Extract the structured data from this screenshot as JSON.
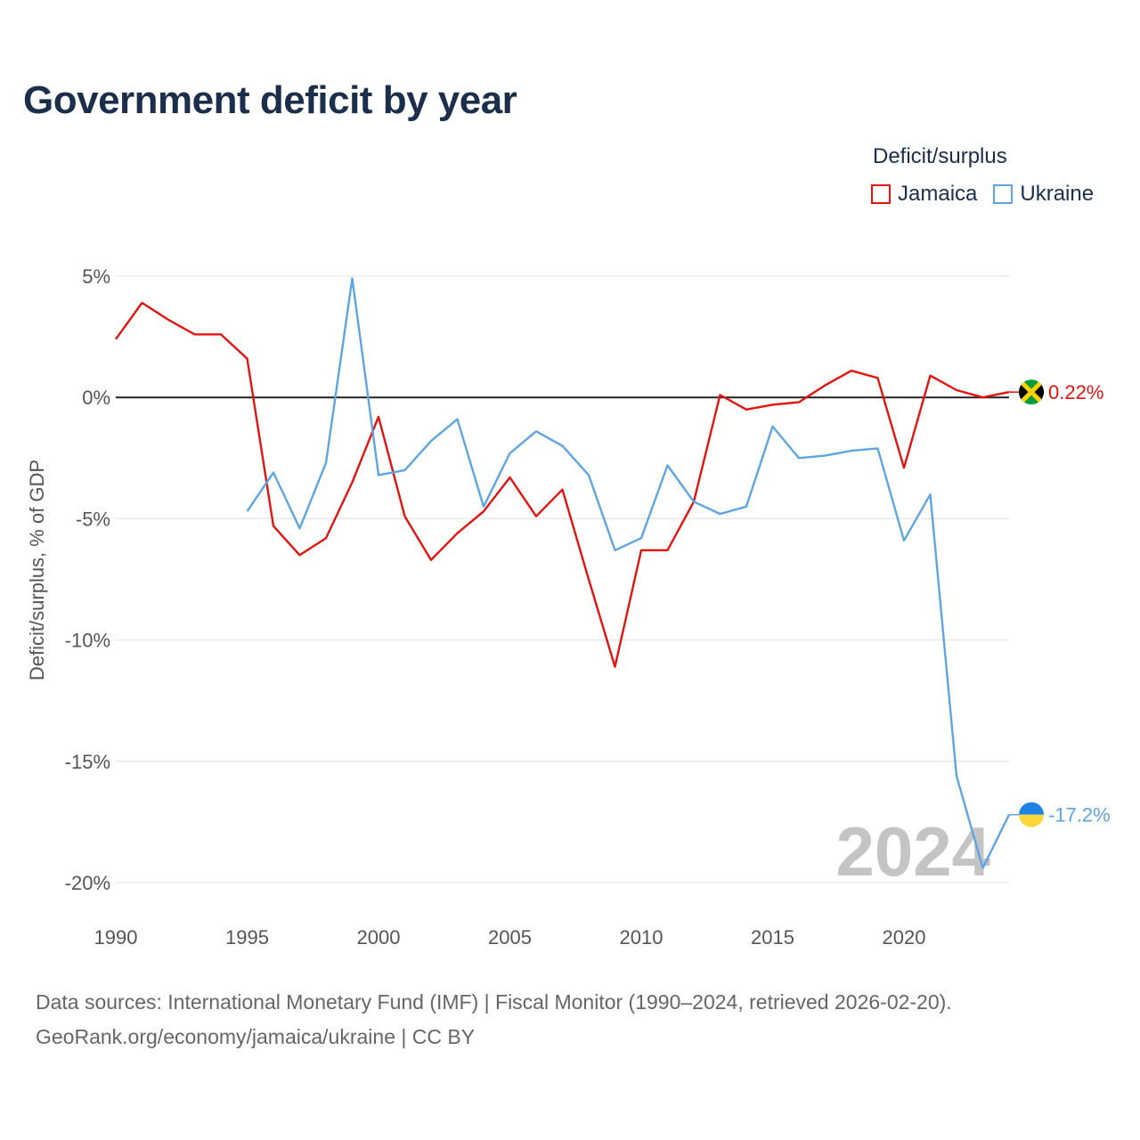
{
  "title": "Government deficit by year",
  "legend": {
    "title": "Deficit/surplus",
    "items": [
      {
        "label": "Jamaica",
        "color": "#e3140f"
      },
      {
        "label": "Ukraine",
        "color": "#5ea5e3"
      }
    ]
  },
  "chart_data": {
    "type": "line",
    "title": "Government deficit by year",
    "xlabel": "",
    "ylabel": "Deficit/surplus, % of GDP",
    "xlim": [
      1990,
      2024
    ],
    "ylim": [
      -20,
      5
    ],
    "x_ticks": [
      1990,
      1995,
      2000,
      2005,
      2010,
      2015,
      2020
    ],
    "y_ticks": [
      5,
      0,
      -5,
      -10,
      -15,
      -20
    ],
    "y_tick_labels": [
      "5%",
      "0%",
      "-5%",
      "-10%",
      "-15%",
      "-20%"
    ],
    "zero_line": true,
    "year_watermark": "2024",
    "series": [
      {
        "name": "Jamaica",
        "color": "#e3140f",
        "end_label": "0.22%",
        "flag": "jamaica-flag",
        "x": [
          1990,
          1991,
          1992,
          1993,
          1994,
          1995,
          1996,
          1997,
          1998,
          1999,
          2000,
          2001,
          2002,
          2003,
          2004,
          2005,
          2006,
          2007,
          2008,
          2009,
          2010,
          2011,
          2012,
          2013,
          2014,
          2015,
          2016,
          2017,
          2018,
          2019,
          2020,
          2021,
          2022,
          2023,
          2024
        ],
        "values": [
          2.4,
          3.9,
          3.2,
          2.6,
          2.6,
          1.6,
          -5.3,
          -6.5,
          -5.8,
          -3.5,
          -0.8,
          -4.9,
          -6.7,
          -5.6,
          -4.7,
          -3.3,
          -4.9,
          -3.8,
          -7.5,
          -11.1,
          -6.3,
          -6.3,
          -4.3,
          0.1,
          -0.5,
          -0.3,
          -0.2,
          0.5,
          1.1,
          0.8,
          -2.9,
          0.9,
          0.3,
          0.0,
          0.22
        ]
      },
      {
        "name": "Ukraine",
        "color": "#5ea5e3",
        "end_label": "-17.2%",
        "flag": "ukraine-flag",
        "x": [
          1995,
          1996,
          1997,
          1998,
          1999,
          2000,
          2001,
          2002,
          2003,
          2004,
          2005,
          2006,
          2007,
          2008,
          2009,
          2010,
          2011,
          2012,
          2013,
          2014,
          2015,
          2016,
          2017,
          2018,
          2019,
          2020,
          2021,
          2022,
          2023,
          2024
        ],
        "values": [
          -4.7,
          -3.1,
          -5.4,
          -2.7,
          4.9,
          -3.2,
          -3.0,
          -1.8,
          -0.9,
          -4.5,
          -2.3,
          -1.4,
          -2.0,
          -3.2,
          -6.3,
          -5.8,
          -2.8,
          -4.3,
          -4.8,
          -4.5,
          -1.2,
          -2.5,
          -2.4,
          -2.2,
          -2.1,
          -5.9,
          -4.0,
          -15.6,
          -19.4,
          -17.2
        ]
      }
    ]
  },
  "source": {
    "line1": "Data sources: International Monetary Fund (IMF) | Fiscal Monitor (1990–2024, retrieved 2026-02-20).",
    "line2": "GeoRank.org/economy/jamaica/ukraine | CC BY"
  }
}
